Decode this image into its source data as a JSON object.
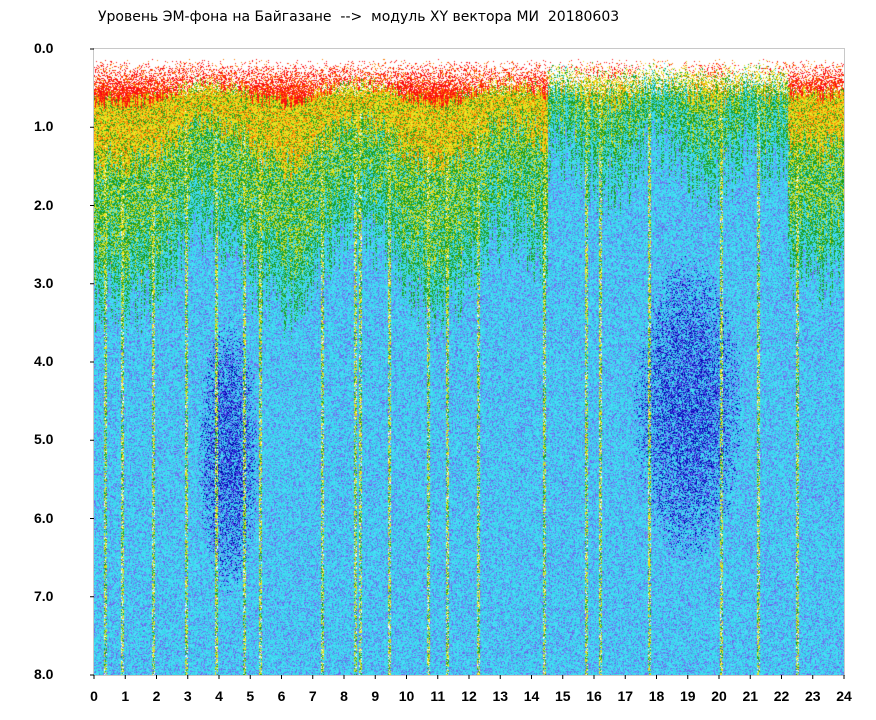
{
  "title": "Уровень ЭМ-фона на Байгазане  -->  модуль XY вектора МИ  20180603",
  "chart_data": {
    "type": "heatmap",
    "title": "Уровень ЭМ-фона на Байгазане  -->  модуль XY вектора МИ  20180603",
    "x_ticks": [
      "0",
      "1",
      "2",
      "3",
      "4",
      "5",
      "6",
      "7",
      "8",
      "9",
      "10",
      "11",
      "12",
      "13",
      "14",
      "15",
      "16",
      "17",
      "18",
      "19",
      "20",
      "21",
      "22",
      "23",
      "24"
    ],
    "y_ticks": [
      "0.0",
      "1.0",
      "2.0",
      "3.0",
      "4.0",
      "5.0",
      "6.0",
      "7.0",
      "8.0"
    ],
    "xlim": [
      0,
      24
    ],
    "ylim": [
      0,
      8
    ],
    "y_inverted": true,
    "colormap": [
      "#0000b0",
      "#3a3ae0",
      "#7070f0",
      "#40d8f0",
      "#20a020",
      "#e8e020",
      "#ff8000",
      "#ff1010"
    ],
    "grid": false
  }
}
